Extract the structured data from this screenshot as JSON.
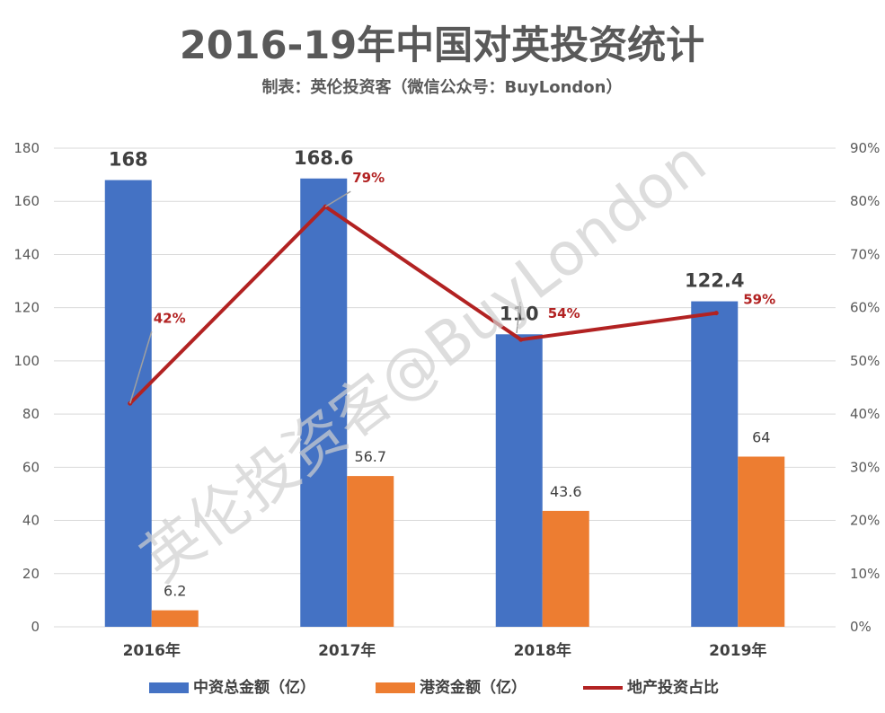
{
  "title": "2016-19年中国对英投资统计",
  "subtitle": "制表：英伦投资客（微信公众号：BuyLondon）",
  "watermark": "英伦投资客@BuyLondon",
  "colors": {
    "bar_total": "#4472c4",
    "bar_hk": "#ed7d31",
    "line": "#b22222",
    "grid": "#d9d9d9"
  },
  "chart_data": {
    "type": "bar",
    "categories": [
      "2016年",
      "2017年",
      "2018年",
      "2019年"
    ],
    "y_left": {
      "min": 0,
      "max": 180,
      "step": 20
    },
    "y_right": {
      "min": 0,
      "max": 90,
      "step": 10,
      "suffix": "%"
    },
    "series": [
      {
        "name": "中资总金额（亿）",
        "type": "bar",
        "axis": "left",
        "values": [
          168,
          168.6,
          110,
          122.4
        ],
        "labels": [
          "168",
          "168.6",
          "110",
          "122.4"
        ]
      },
      {
        "name": "港资金额（亿）",
        "type": "bar",
        "axis": "left",
        "values": [
          6.2,
          56.7,
          43.6,
          64
        ],
        "labels": [
          "6.2",
          "56.7",
          "43.6",
          "64"
        ]
      },
      {
        "name": "地产投资占比",
        "type": "line",
        "axis": "right",
        "values": [
          42,
          79,
          54,
          59
        ],
        "labels": [
          "42%",
          "79%",
          "54%",
          "59%"
        ]
      }
    ],
    "legend_position": "bottom",
    "grid": true
  }
}
